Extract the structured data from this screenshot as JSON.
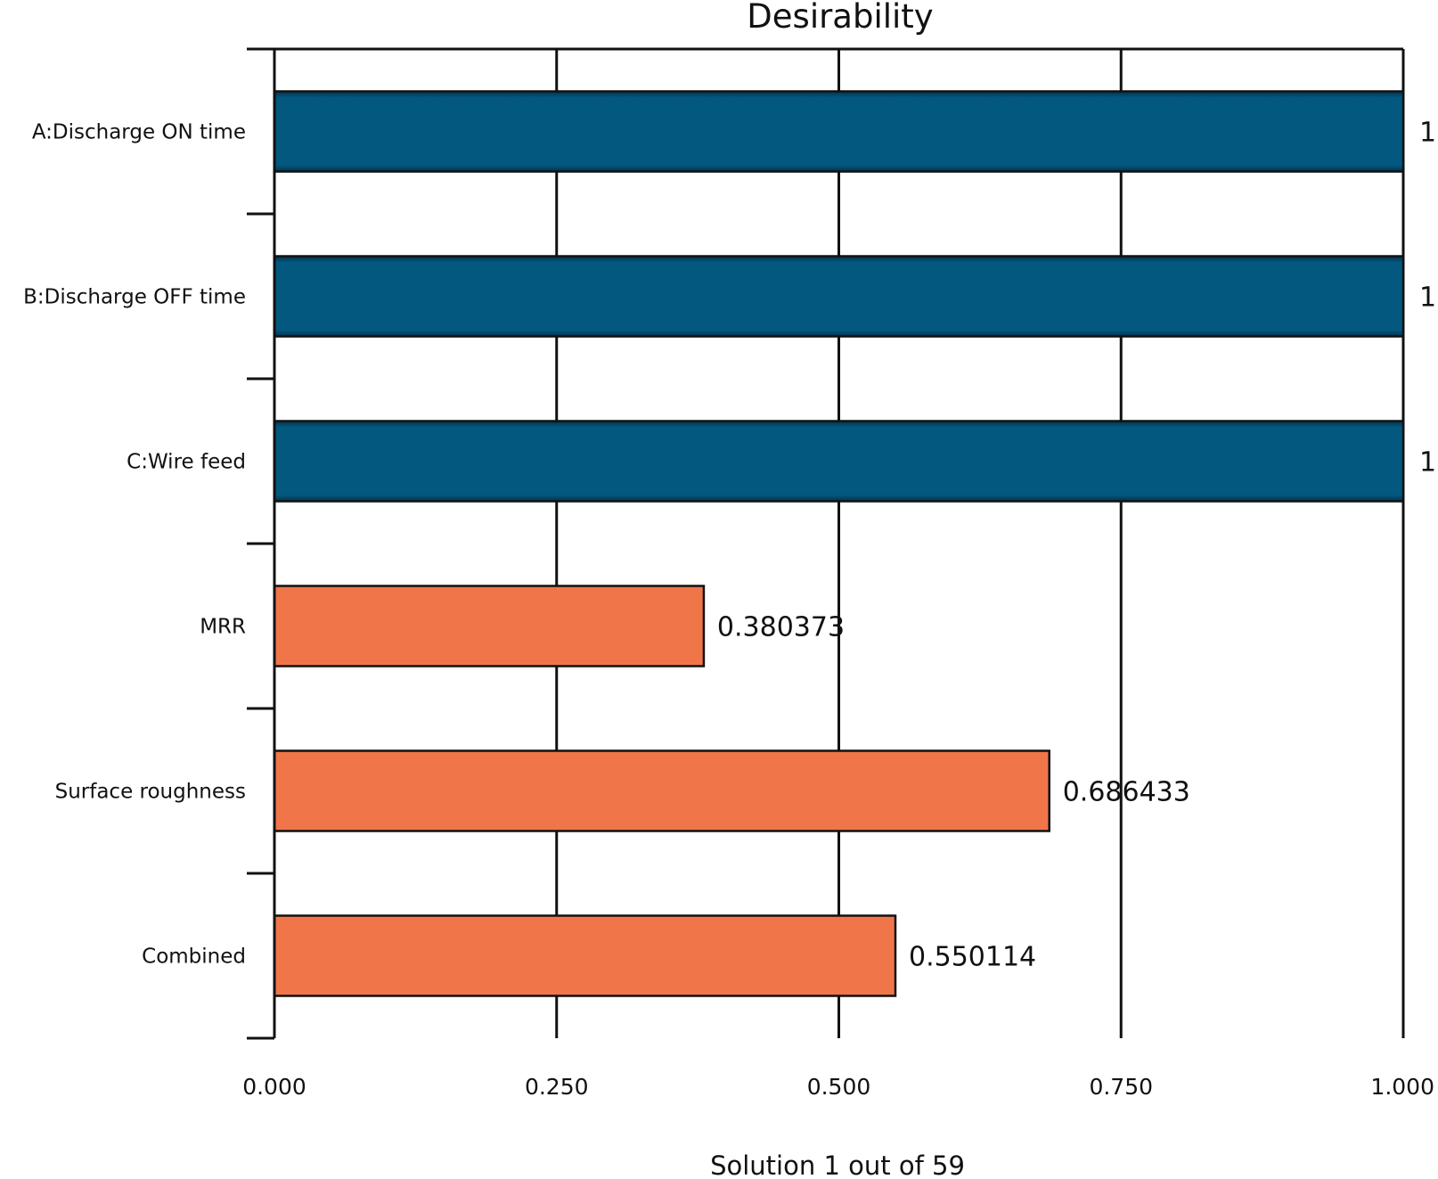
{
  "chart_data": {
    "type": "bar",
    "orientation": "horizontal",
    "title": "Desirability",
    "xlabel": "",
    "ylabel": "",
    "footer": "Solution 1 out of 59",
    "xlim": [
      0,
      1
    ],
    "x_ticks": [
      0,
      0.25,
      0.5,
      0.75,
      1
    ],
    "x_tick_labels": [
      "0.000",
      "0.250",
      "0.500",
      "0.750",
      "1.000"
    ],
    "grid": true,
    "categories": [
      "A:Discharge ON time",
      "B:Discharge OFF time",
      "C:Wire feed",
      "MRR",
      "Surface roughness",
      "Combined"
    ],
    "values": [
      1,
      1,
      1,
      0.380373,
      0.686433,
      0.550114
    ],
    "value_labels": [
      "1",
      "1",
      "1",
      "0.380373",
      "0.686433",
      "0.550114"
    ],
    "bar_colors": [
      "#02587f",
      "#02587f",
      "#02587f",
      "#f07649",
      "#f07649",
      "#f07649"
    ]
  }
}
